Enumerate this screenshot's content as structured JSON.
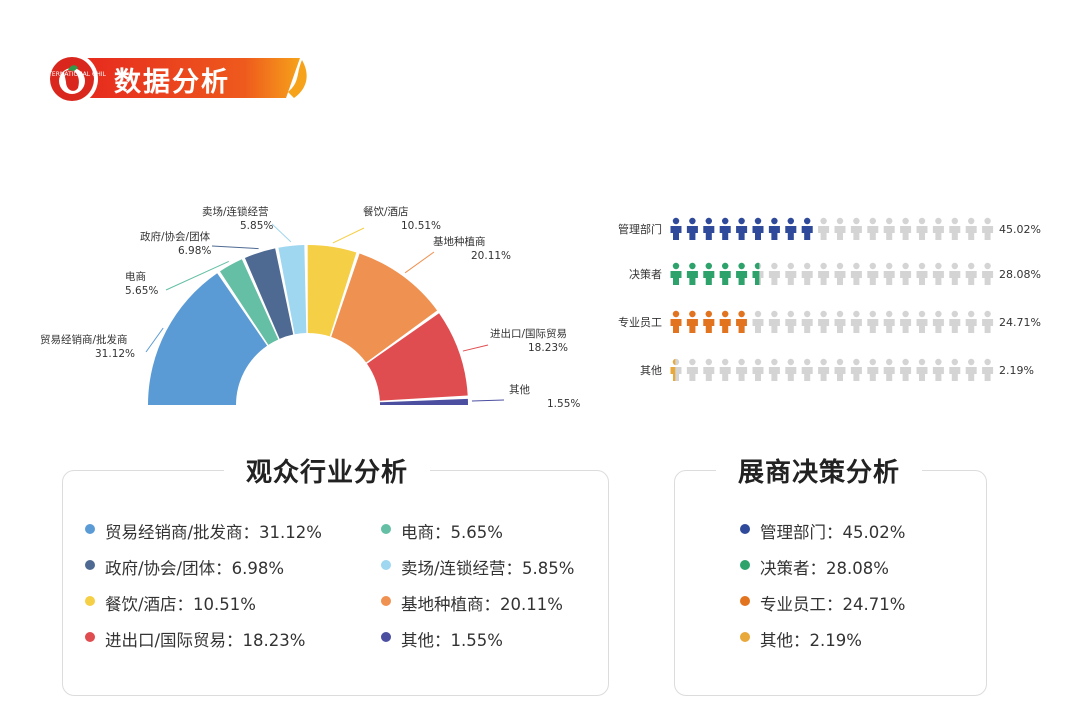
{
  "header": {
    "title": "数据分析",
    "logo_text": "INTERNATIONAL CHILI TRADE",
    "colors": {
      "banner_start": "#e6281e",
      "banner_end": "#f6a21a",
      "logo": "#d9271e",
      "logo_accent": "#2e9a4a"
    }
  },
  "chart_data": [
    {
      "type": "pie",
      "title": "观众行业分析",
      "variant": "semicircle-donut",
      "slices": [
        {
          "name": "贸易经销商/批发商",
          "value": 31.12,
          "pct_label": "31.12%",
          "color": "#5b9bd5"
        },
        {
          "name": "电商",
          "value": 5.65,
          "pct_label": "5.65%",
          "color": "#64bfa4"
        },
        {
          "name": "政府/协会/团体",
          "value": 6.98,
          "pct_label": "6.98%",
          "color": "#4e6a93"
        },
        {
          "name": "卖场/连锁经营",
          "value": 5.85,
          "pct_label": "5.85%",
          "color": "#9fd6f0"
        },
        {
          "name": "餐饮/酒店",
          "value": 10.51,
          "pct_label": "10.51%",
          "color": "#f5cf45"
        },
        {
          "name": "基地种植商",
          "value": 20.11,
          "pct_label": "20.11%",
          "color": "#ef9150"
        },
        {
          "name": "进出口/国际贸易",
          "value": 18.23,
          "pct_label": "18.23%",
          "color": "#e04d50"
        },
        {
          "name": "其他",
          "value": 1.55,
          "pct_label": "1.55%",
          "color": "#4c4fa0"
        }
      ],
      "legend": [
        {
          "text": "贸易经销商/批发商：31.12%",
          "color": "#5b9bd5"
        },
        {
          "text": "电商：5.65%",
          "color": "#64bfa4"
        },
        {
          "text": "政府/协会/团体：6.98%",
          "color": "#4e6a93"
        },
        {
          "text": "卖场/连锁经营：5.85%",
          "color": "#9fd6f0"
        },
        {
          "text": "餐饮/酒店：10.51%",
          "color": "#f5cf45"
        },
        {
          "text": "基地种植商：20.11%",
          "color": "#ef9150"
        },
        {
          "text": "进出口/国际贸易：18.23%",
          "color": "#e04d50"
        },
        {
          "text": "其他：1.55%",
          "color": "#4c4fa0"
        }
      ]
    },
    {
      "type": "bar",
      "variant": "pictogram",
      "title": "展商决策分析",
      "icons_per_row": 20,
      "inactive_color": "#d4d4d4",
      "rows": [
        {
          "name": "管理部门",
          "value": 45.02,
          "pct_label": "45.02%",
          "color": "#2f4a9a"
        },
        {
          "name": "决策者",
          "value": 28.08,
          "pct_label": "28.08%",
          "color": "#2da36b"
        },
        {
          "name": "专业员工",
          "value": 24.71,
          "pct_label": "24.71%",
          "color": "#e2731f"
        },
        {
          "name": "其他",
          "value": 2.19,
          "pct_label": "2.19%",
          "color": "#e8a83a"
        }
      ],
      "legend": [
        {
          "text": "管理部门：45.02%",
          "color": "#2f4a9a"
        },
        {
          "text": "决策者：28.08%",
          "color": "#2da36b"
        },
        {
          "text": "专业员工：24.71%",
          "color": "#e2731f"
        },
        {
          "text": "其他：2.19%",
          "color": "#e8a83a"
        }
      ]
    }
  ]
}
